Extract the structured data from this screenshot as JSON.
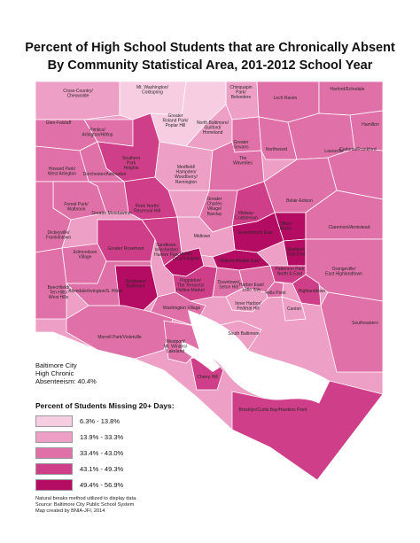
{
  "title": {
    "line1": "Percent of High School Students that are Chronically Absent",
    "line2": "By Community Statistical Area, 201-2012 School Year"
  },
  "colors": {
    "class1": "#f7cde2",
    "class2": "#ee9fc6",
    "class3": "#e070a8",
    "class4": "#cf3e88",
    "class5": "#b40b63",
    "border": "#ffffff",
    "water": "#ffffff"
  },
  "inset_text": [
    "Baltimore City",
    "High Chronic",
    "Absenteeism: 40.4%"
  ],
  "legend": {
    "title": "Percent of Students Missing 20+ Days:",
    "items": [
      {
        "label": "6.3% - 13.8%",
        "class": 1
      },
      {
        "label": "13.9% - 33.3%",
        "class": 2
      },
      {
        "label": "33.4% - 43.0%",
        "class": 3
      },
      {
        "label": "43.1% - 49.3%",
        "class": 4
      },
      {
        "label": "49.4% - 56.9%",
        "class": 5
      }
    ]
  },
  "footnotes": [
    "Natural breaks method utilized to display data.",
    "Source: Baltimore City Public School System",
    "Map created by BNIA-JFI, 2014"
  ],
  "areas": [
    {
      "name": [
        "Cross-Country/",
        "Cheswolde"
      ],
      "class": 2
    },
    {
      "name": [
        "Mt. Washington/",
        "Coldspring"
      ],
      "class": 1
    },
    {
      "name": [
        "Chinquapin",
        "Park/",
        "Belvedere"
      ],
      "class": 2
    },
    {
      "name": [
        "Loch Raven"
      ],
      "class": 3
    },
    {
      "name": [
        "Harford/Echodale"
      ],
      "class": 3
    },
    {
      "name": [
        "Glen-Falstaff"
      ],
      "class": 3
    },
    {
      "name": [
        "Greater",
        "Roland Park/",
        "Poplar Hill"
      ],
      "class": 1
    },
    {
      "name": [
        "North Baltimore/",
        "Guilford/",
        "Homeland"
      ],
      "class": 2
    },
    {
      "name": [
        "Hamilton"
      ],
      "class": 3
    },
    {
      "name": [
        "Pimlico/",
        "Arlington/Hilltop"
      ],
      "class": 3
    },
    {
      "name": [
        "Greater",
        "Govans"
      ],
      "class": 3
    },
    {
      "name": [
        "Northwood"
      ],
      "class": 3
    },
    {
      "name": [
        "Lauraville"
      ],
      "class": 3
    },
    {
      "name": [
        "Southern",
        "Park",
        "Heights"
      ],
      "class": 4
    },
    {
      "name": [
        "Medfield/",
        "Hampden/",
        "Woodberry/",
        "Remington"
      ],
      "class": 2
    },
    {
      "name": [
        "Howard Park/",
        "West Arlington"
      ],
      "class": 3
    },
    {
      "name": [
        "Dorchester/Ashburton"
      ],
      "class": 3
    },
    {
      "name": [
        "Cedonia/Frankford"
      ],
      "class": 3
    },
    {
      "name": [
        "The",
        "Waverlies"
      ],
      "class": 3
    },
    {
      "name": [
        "Forest Park/",
        "Walbrook"
      ],
      "class": 3
    },
    {
      "name": [
        "Penn North/",
        "Reservoir Hill"
      ],
      "class": 4
    },
    {
      "name": [
        "Greater",
        "Charles",
        "Village/",
        "Barclay"
      ],
      "class": 3
    },
    {
      "name": [
        "Belair-Edison"
      ],
      "class": 3
    },
    {
      "name": [
        "Greater Mondawmin"
      ],
      "class": 3
    },
    {
      "name": [
        "Midway-",
        "Coldstream"
      ],
      "class": 4
    },
    {
      "name": [
        "Clifton-",
        "Berea"
      ],
      "class": 5
    },
    {
      "name": [
        "Claremont/Armistead"
      ],
      "class": 3
    },
    {
      "name": [
        "Dickeyville/",
        "Franklintown"
      ],
      "class": 3
    },
    {
      "name": [
        "Greenmount East"
      ],
      "class": 5
    },
    {
      "name": [
        "Midtown"
      ],
      "class": 2
    },
    {
      "name": [
        "Greater Rosemont"
      ],
      "class": 4
    },
    {
      "name": [
        "Sandtown-",
        "Winchester/",
        "Harlem Park"
      ],
      "class": 4
    },
    {
      "name": [
        "Upton/",
        "Druid Heights"
      ],
      "class": 5
    },
    {
      "name": [
        "Madison/",
        "East End"
      ],
      "class": 5
    },
    {
      "name": [
        "Oldtown/Middle East"
      ],
      "class": 5
    },
    {
      "name": [
        "Edmondson",
        "Village"
      ],
      "class": 3
    },
    {
      "name": [
        "Orangeville/",
        "East Highlandtown"
      ],
      "class": 3
    },
    {
      "name": [
        "Patterson Park",
        "North & East"
      ],
      "class": 4
    },
    {
      "name": [
        "Beechfield/",
        "Ten Hills/",
        "West Hills"
      ],
      "class": 3
    },
    {
      "name": [
        "Poppleton/",
        "The Terraces/",
        "Hollins Market"
      ],
      "class": 4
    },
    {
      "name": [
        "Downtown/",
        "Seton Hill"
      ],
      "class": 3
    },
    {
      "name": [
        "Harbor East/",
        "Little Italy"
      ],
      "class": 3
    },
    {
      "name": [
        "Fells Point"
      ],
      "class": 3
    },
    {
      "name": [
        "Highlandtown"
      ],
      "class": 4
    },
    {
      "name": [
        "Allendale/Irvington/S. Hilton"
      ],
      "class": 3
    },
    {
      "name": [
        "Southwest",
        "Baltimore"
      ],
      "class": 5
    },
    {
      "name": [
        "Inner Harbor/",
        "Federal Hill"
      ],
      "class": 2
    },
    {
      "name": [
        "Canton"
      ],
      "class": 2
    },
    {
      "name": [
        "Washington Village"
      ],
      "class": 3
    },
    {
      "name": [
        "Southeastern"
      ],
      "class": 3
    },
    {
      "name": [
        "South Baltimore"
      ],
      "class": 2
    },
    {
      "name": [
        "Morrell Park/Violetville"
      ],
      "class": 3
    },
    {
      "name": [
        "Westport/",
        "Mt. Winans/",
        "Lakeland"
      ],
      "class": 3
    },
    {
      "name": [
        "Cherry Hill"
      ],
      "class": 4
    },
    {
      "name": [
        "Brooklyn/Curtis Bay/Hawkins Point"
      ],
      "class": 4
    }
  ]
}
